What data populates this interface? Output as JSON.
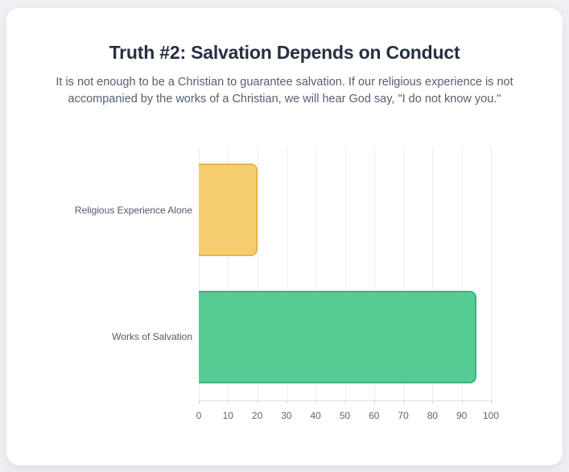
{
  "page": {
    "background_color": "#eef0f3",
    "card_color": "#ffffff"
  },
  "header": {
    "title": "Truth #2: Salvation Depends on Conduct",
    "subtitle": "It is not enough to be a Christian to guarantee salvation. If our religious experience is not accompanied by the works of a Christian, we will hear God say, \"I do not know you.\""
  },
  "chart_data": {
    "type": "bar",
    "orientation": "horizontal",
    "title": "",
    "xlabel": "",
    "ylabel": "",
    "categories": [
      "Religious Experience Alone",
      "Works of Salvation"
    ],
    "values": [
      20,
      95
    ],
    "bar_fill_colors": [
      "#f6cd6e",
      "#56cb94"
    ],
    "bar_border_colors": [
      "#e9b44a",
      "#3fb383"
    ],
    "xlim": [
      0,
      100
    ],
    "x_ticks": [
      0,
      10,
      20,
      30,
      40,
      50,
      60,
      70,
      80,
      90,
      100
    ],
    "grid": true,
    "gridline_color": "#ebedf0",
    "legend": false
  }
}
